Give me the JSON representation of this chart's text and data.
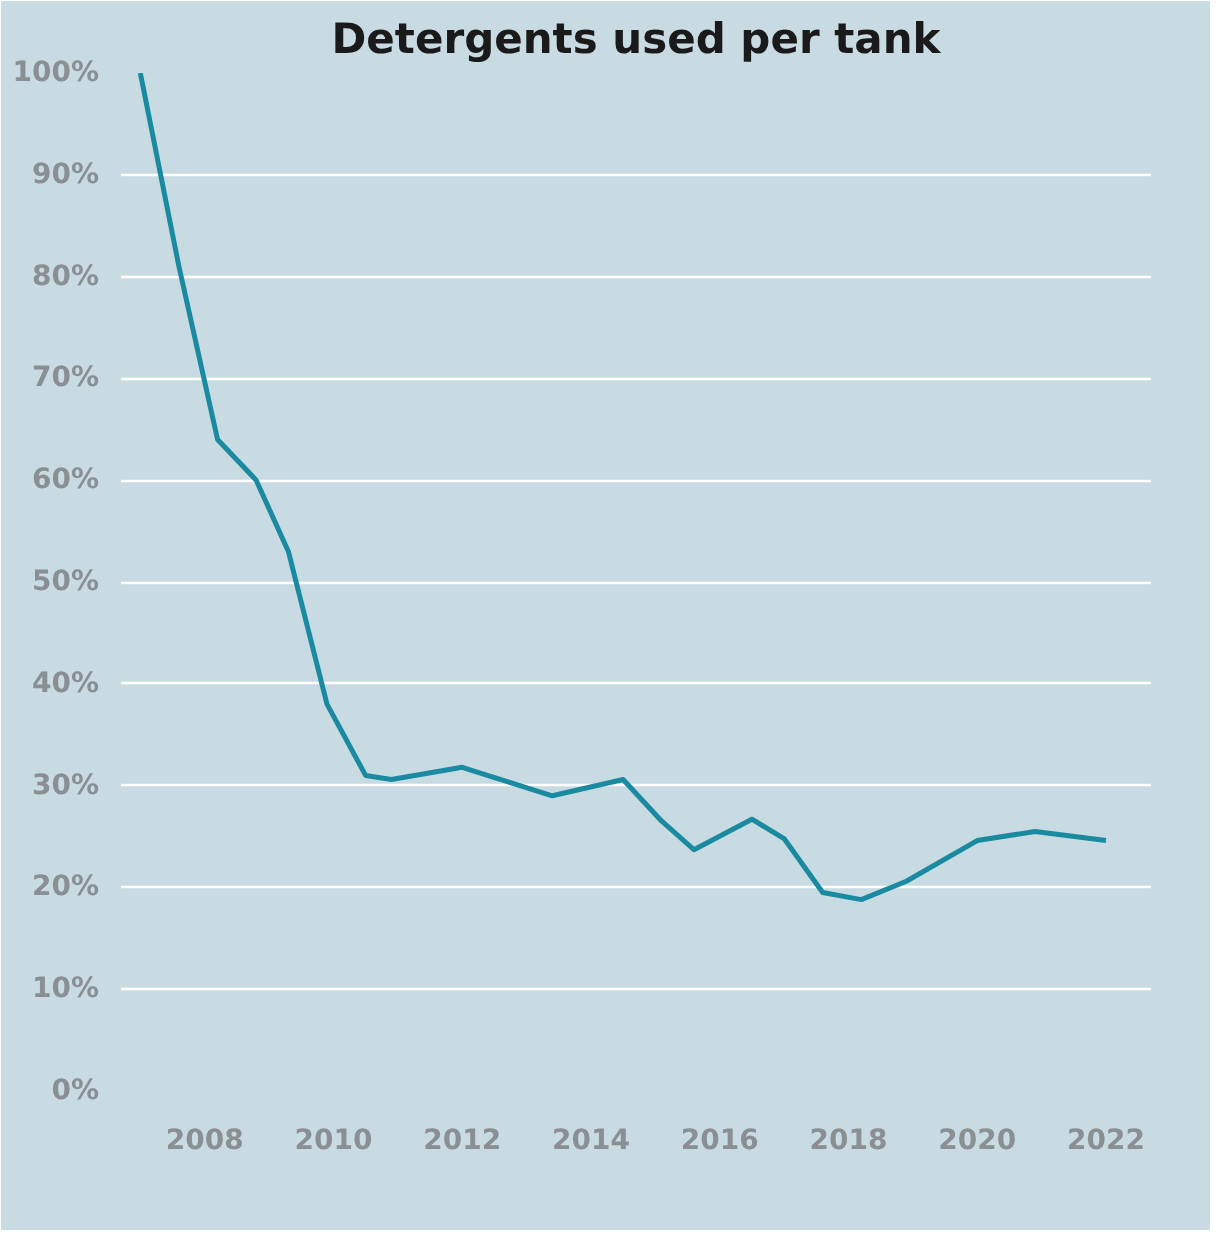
{
  "chart_data": {
    "type": "line",
    "title": "Detergents used per tank",
    "x": [
      2007,
      2007.6,
      2008.2,
      2008.8,
      2009.3,
      2009.9,
      2010.5,
      2010.9,
      2012,
      2012.7,
      2013.4,
      2014.5,
      2015.1,
      2015.6,
      2016.5,
      2017,
      2017.6,
      2018.2,
      2018.9,
      2020,
      2020.9,
      2022
    ],
    "series": [
      {
        "color": "#1a8aa0",
        "values": [
          100,
          81,
          64,
          60,
          53,
          38,
          31,
          30.6,
          31.8,
          30.4,
          29,
          30.6,
          26.5,
          23.7,
          26.7,
          24.8,
          19.5,
          18.8,
          20.6,
          24.6,
          25.5,
          24.6
        ]
      }
    ],
    "xlim": [
      2006.7,
      2022.7
    ],
    "xticks": [
      2008,
      2010,
      2012,
      2014,
      2016,
      2018,
      2020,
      2022
    ],
    "ylim": [
      0,
      100
    ],
    "yticks": [
      {
        "value": 0,
        "label": "0%"
      },
      {
        "value": 10,
        "label": "10%"
      },
      {
        "value": 20,
        "label": "20%"
      },
      {
        "value": 30,
        "label": "30%"
      },
      {
        "value": 40,
        "label": "40%"
      },
      {
        "value": 50,
        "label": "50%"
      },
      {
        "value": 60,
        "label": "60%"
      },
      {
        "value": 70,
        "label": "70%"
      },
      {
        "value": 80,
        "label": "80%"
      },
      {
        "value": 90,
        "label": "90%"
      },
      {
        "value": 100,
        "label": "100%"
      }
    ],
    "grid": "y",
    "marker": "none",
    "line_style": "solid"
  }
}
